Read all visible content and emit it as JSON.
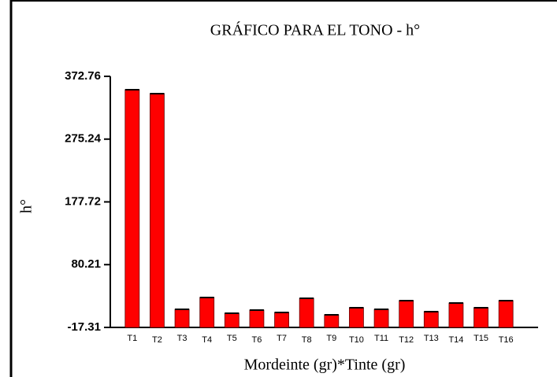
{
  "chart_data": {
    "type": "bar",
    "title": "GRÁFICO PARA EL TONO - h°",
    "y_label": "h°",
    "x_label": "Mordeinte (gr)*Tinte (gr)",
    "categories": [
      "T1",
      "T2",
      "T3",
      "T4",
      "T5",
      "T6",
      "T7",
      "T8",
      "T9",
      "T10",
      "T11",
      "T12",
      "T13",
      "T14",
      "T15",
      "T16"
    ],
    "values": [
      352.0,
      345.9,
      10.8,
      29.2,
      4.7,
      9.6,
      5.9,
      27.9,
      2.3,
      13.3,
      10.8,
      24.3,
      7.1,
      20.6,
      13.3,
      24.3
    ],
    "color": "#ff0000",
    "ylim": [
      -17.31,
      372.76
    ],
    "yticks": [
      -17.31,
      80.21,
      177.72,
      275.24,
      372.76
    ],
    "grid": false
  }
}
